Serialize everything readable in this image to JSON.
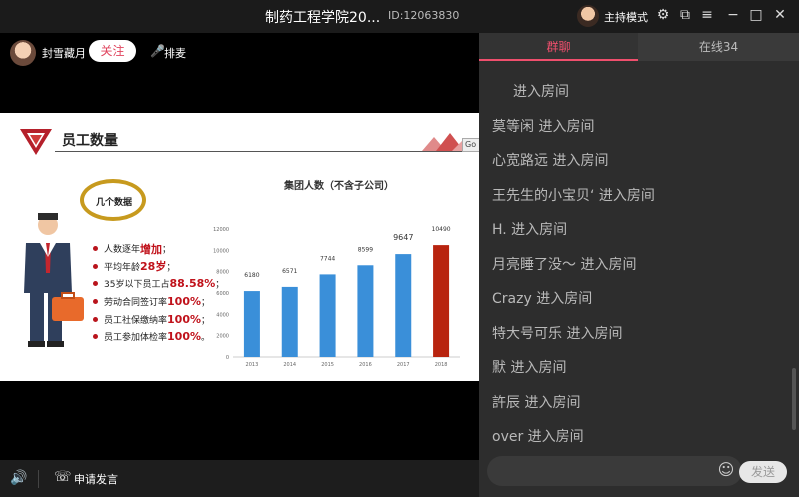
{
  "window": {
    "title": "制药工程学院20...",
    "room_id": "ID:12063830",
    "host_mode": "主持模式"
  },
  "icons": [
    "settings-icon",
    "popout-icon",
    "menu-icon",
    "minimize-icon",
    "maximize-icon",
    "close-icon",
    "speaker-icon",
    "phone-icon",
    "emoji-icon",
    "rank-icon"
  ],
  "stage": {
    "user_name": "封雪藏月",
    "follow_label": "关注",
    "rank_label": "排麦"
  },
  "slide": {
    "title": "员工数量",
    "bubble": "几个数据",
    "bullets": [
      {
        "prefix": "人数逐年",
        "highlight": "增加",
        "suffix": "；"
      },
      {
        "prefix": "平均年龄",
        "highlight": "28岁",
        "suffix": "；"
      },
      {
        "prefix": "35岁以下员工占",
        "highlight": "88.58%",
        "suffix": "；"
      },
      {
        "prefix": "劳动合同签订率",
        "highlight": "100%",
        "suffix": "；"
      },
      {
        "prefix": "员工社保缴纳率",
        "highlight": "100%",
        "suffix": "；"
      },
      {
        "prefix": "员工参加体检率",
        "highlight": "100%",
        "suffix": "。"
      }
    ],
    "go_tag": "Go"
  },
  "chart_data": {
    "type": "bar",
    "title": "集团人数（不含子公司）",
    "categories": [
      "2013",
      "2014",
      "2015",
      "2016",
      "2017",
      "2018"
    ],
    "values": [
      6180,
      6571,
      7744,
      8599,
      9647,
      10490
    ],
    "data_labels": [
      "6180",
      "6571",
      "7744",
      "8599",
      "9647",
      "10490"
    ],
    "yticks": [
      "0",
      "2000",
      "4000",
      "6000",
      "8000",
      "10000",
      "12000"
    ],
    "ylim": [
      0,
      12000
    ],
    "colors": [
      "#3a8fd9",
      "#3a8fd9",
      "#3a8fd9",
      "#3a8fd9",
      "#3a8fd9",
      "#b8240f"
    ],
    "grid": false
  },
  "bottom": {
    "apply_label": "申请发言"
  },
  "panel": {
    "tab_chat": "群聊",
    "tab_online": "在线34",
    "messages": [
      "进入房间",
      "莫等闲 进入房间",
      "心宽路远 进入房间",
      "王先生的小宝贝‘ 进入房间",
      "H. 进入房间",
      "月亮睡了没～ 进入房间",
      "Crazy 进入房间",
      "特大号可乐 进入房间",
      "默 进入房间",
      "許辰 进入房间",
      "over 进入房间"
    ],
    "send_label": "发送"
  }
}
